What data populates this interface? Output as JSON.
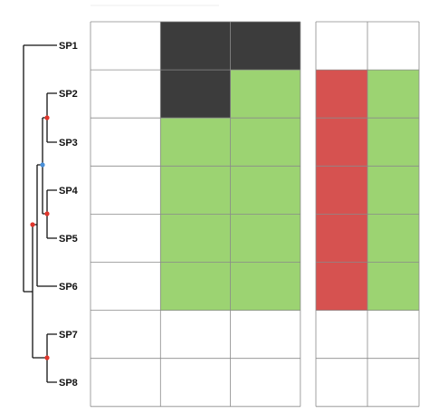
{
  "tree": {
    "leaves": [
      "SP1",
      "SP2",
      "SP3",
      "SP4",
      "SP5",
      "SP6",
      "SP7",
      "SP8"
    ],
    "node_colors": {
      "red": "#e0352b",
      "blue": "#4a90d9"
    }
  },
  "matrix": {
    "colors": {
      "dark": "#3c3c3c",
      "green": "#9cd372",
      "red": "#d65250",
      "empty": "#ffffff",
      "grid": "#8a8a8a"
    },
    "left_block": [
      [
        "empty",
        "dark",
        "dark"
      ],
      [
        "empty",
        "dark",
        "green"
      ],
      [
        "empty",
        "green",
        "green"
      ],
      [
        "empty",
        "green",
        "green"
      ],
      [
        "empty",
        "green",
        "green"
      ],
      [
        "empty",
        "green",
        "green"
      ],
      [
        "empty",
        "empty",
        "empty"
      ],
      [
        "empty",
        "empty",
        "empty"
      ]
    ],
    "right_block": [
      [
        "empty",
        "empty"
      ],
      [
        "red",
        "green"
      ],
      [
        "red",
        "green"
      ],
      [
        "red",
        "green"
      ],
      [
        "red",
        "green"
      ],
      [
        "red",
        "green"
      ],
      [
        "empty",
        "empty"
      ],
      [
        "empty",
        "empty"
      ]
    ]
  }
}
